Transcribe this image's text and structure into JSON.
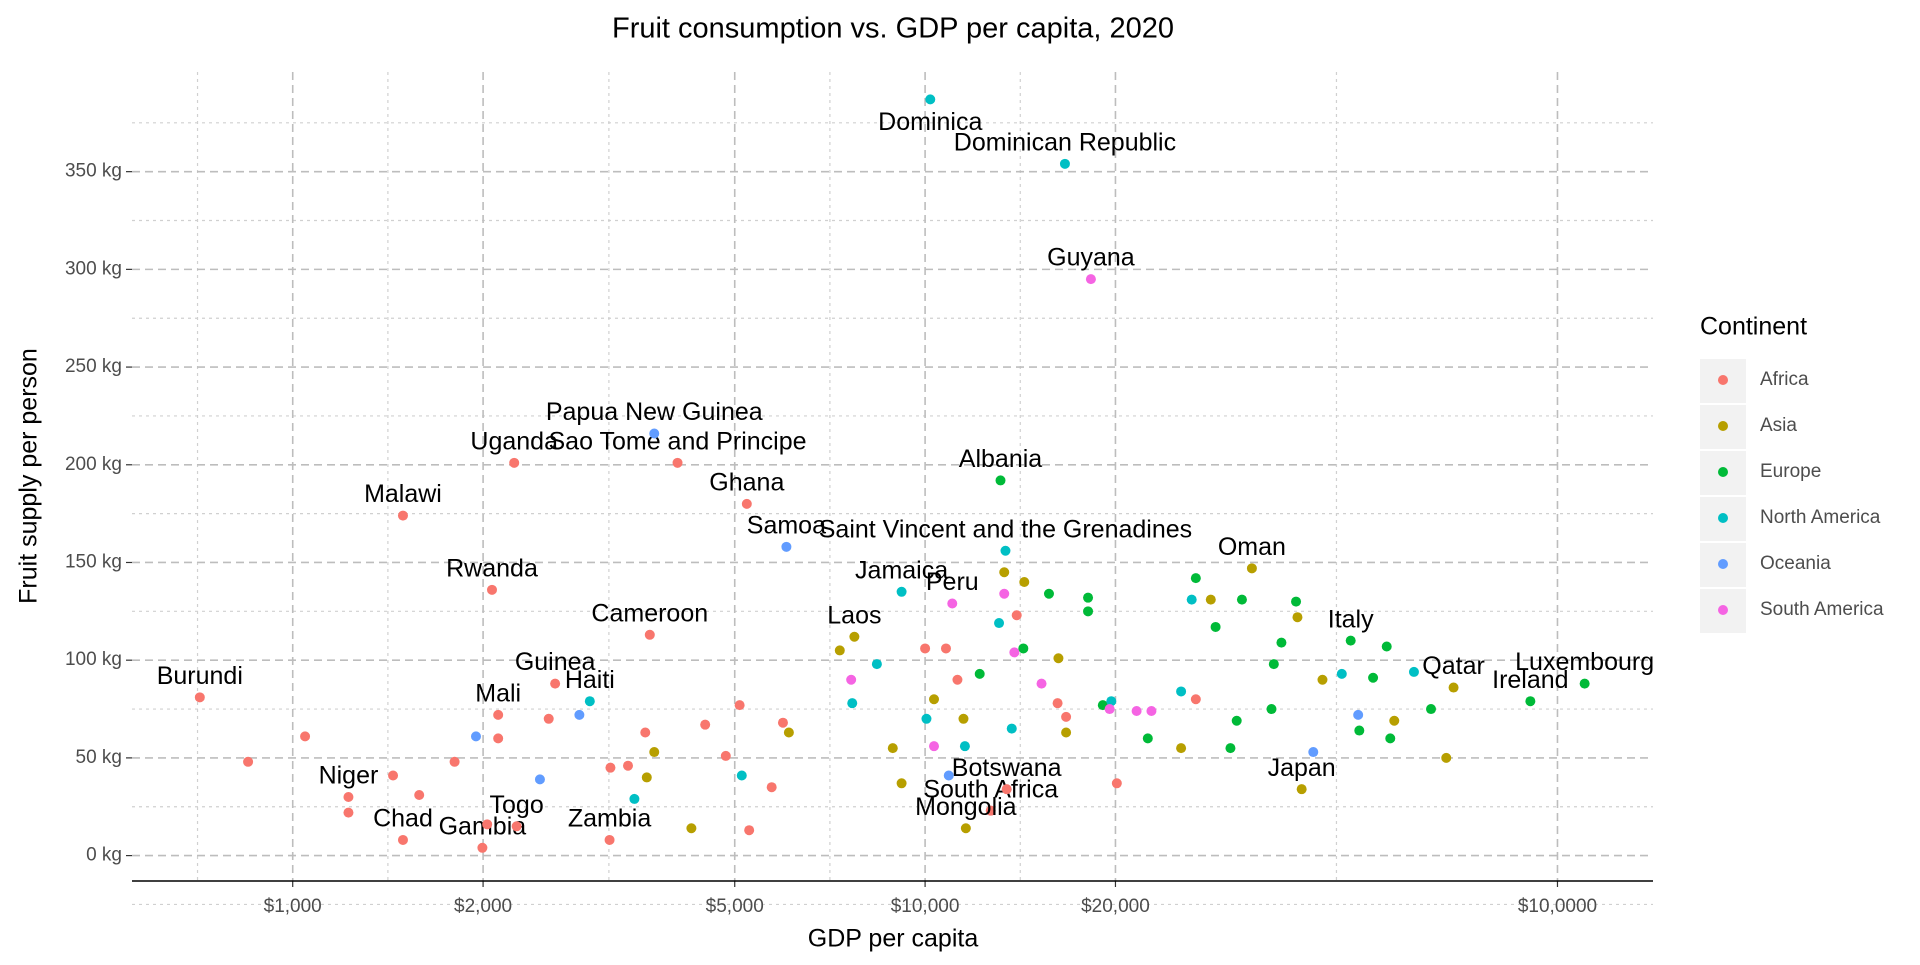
{
  "chart_data": {
    "type": "scatter",
    "title": "Fruit consumption vs. GDP per capita, 2020",
    "x_label": "GDP per capita",
    "y_label": "Fruit supply per person",
    "legend_title": "Continent",
    "xscale": "log",
    "grid": true,
    "legend_position": "right",
    "xlim": [
      557,
      141600
    ],
    "ylim": [
      -13,
      401
    ],
    "xticks": [
      {
        "value": 1000,
        "label": "$1,000"
      },
      {
        "value": 2000,
        "label": "$2,000"
      },
      {
        "value": 5000,
        "label": "$5,000"
      },
      {
        "value": 10000,
        "label": "$10,000"
      },
      {
        "value": 20000,
        "label": "$20,000"
      },
      {
        "value": 100000,
        "label": "$10,0000"
      }
    ],
    "yticks": [
      {
        "value": 0,
        "label": "0 kg"
      },
      {
        "value": 50,
        "label": "50 kg"
      },
      {
        "value": 100,
        "label": "100 kg"
      },
      {
        "value": 150,
        "label": "150 kg"
      },
      {
        "value": 200,
        "label": "200 kg"
      },
      {
        "value": 250,
        "label": "250 kg"
      },
      {
        "value": 300,
        "label": "300 kg"
      },
      {
        "value": 350,
        "label": "350 kg"
      }
    ],
    "series": [
      {
        "name": "Africa",
        "color": "#F8766D",
        "labels": [
          "Uganda",
          "Sao Tome and Principe",
          "Malawi",
          "Ghana",
          "Rwanda",
          "Cameroon",
          "Guinea",
          "Mali",
          "Burundi",
          "Niger",
          "Chad",
          "Gambia",
          "Togo",
          "Zambia",
          "South Africa",
          "Botswana",
          null,
          null,
          null,
          null,
          null,
          null,
          null,
          null,
          null,
          null,
          null,
          null,
          null,
          null,
          null,
          null,
          null,
          null,
          null,
          null,
          null,
          null,
          null,
          null,
          null,
          null
        ],
        "x": [
          2240,
          4060,
          1494,
          5225,
          2066,
          3670,
          2600,
          2113,
          713,
          1225,
          1494,
          1995,
          2260,
          3170,
          12700,
          13460,
          850,
          1046,
          1225,
          1441,
          1585,
          1803,
          2113,
          2540,
          3610,
          4490,
          5090,
          5960,
          3180,
          4840,
          5270,
          5720,
          10000,
          10790,
          11250,
          16710,
          16200,
          20100,
          26800,
          13960,
          2030,
          3390
        ],
        "values": [
          201,
          201,
          174,
          180,
          136,
          113,
          88,
          72,
          81,
          30,
          8,
          4,
          15,
          8,
          23,
          34,
          48,
          61,
          22,
          41,
          31,
          48,
          60,
          70,
          63,
          67,
          77,
          68,
          45,
          51,
          13,
          35,
          106,
          106,
          90,
          71,
          78,
          37,
          80,
          123,
          16,
          46
        ]
      },
      {
        "name": "Asia",
        "color": "#B79F00",
        "labels": [
          "Laos",
          "Mongolia",
          "Oman",
          "Qatar",
          "Japan",
          null,
          null,
          null,
          null,
          null,
          null,
          null,
          null,
          null,
          null,
          null,
          null,
          null,
          null,
          null,
          null,
          null,
          null,
          null
        ],
        "x": [
          7730,
          11600,
          32870,
          68500,
          39400,
          7330,
          8890,
          9180,
          10330,
          11500,
          13340,
          14350,
          16250,
          16710,
          25400,
          28300,
          38800,
          42500,
          55200,
          66700,
          6090,
          3730,
          3630,
          4270
        ],
        "values": [
          112,
          14,
          147,
          86,
          34,
          105,
          55,
          37,
          80,
          70,
          145,
          140,
          101,
          63,
          55,
          131,
          122,
          90,
          69,
          50,
          63,
          53,
          40,
          14
        ]
      },
      {
        "name": "Europe",
        "color": "#00BA38",
        "labels": [
          "Albania",
          "Italy",
          "Luxembourg",
          "Ireland",
          null,
          null,
          null,
          null,
          null,
          null,
          null,
          null,
          null,
          null,
          null,
          null,
          null,
          null,
          null,
          null,
          null,
          null,
          null,
          null,
          null
        ],
        "x": [
          13160,
          47100,
          110400,
          90600,
          26800,
          28800,
          31700,
          38600,
          35600,
          36600,
          53700,
          51100,
          48600,
          54400,
          63100,
          35300,
          31100,
          30400,
          22500,
          19100,
          18100,
          18100,
          15700,
          14300,
          12200
        ],
        "values": [
          192,
          110,
          88,
          79,
          142,
          117,
          131,
          130,
          98,
          109,
          107,
          91,
          64,
          60,
          75,
          75,
          69,
          55,
          60,
          77,
          132,
          125,
          134,
          106,
          93
        ]
      },
      {
        "name": "North America",
        "color": "#00BFC4",
        "labels": [
          "Dominica",
          "Dominican Republic",
          "Saint Vincent and the Grenadines",
          "Jamaica",
          "Haiti",
          null,
          null,
          null,
          null,
          null,
          null,
          null,
          null,
          null,
          null,
          null,
          null,
          null
        ],
        "x": [
          10190,
          16640,
          13400,
          9180,
          2950,
          8390,
          7670,
          10050,
          11560,
          13710,
          13090,
          19700,
          26400,
          25400,
          45600,
          59300,
          3470,
          5130
        ],
        "values": [
          387,
          354,
          156,
          135,
          79,
          98,
          78,
          70,
          56,
          65,
          119,
          79,
          131,
          84,
          93,
          94,
          29,
          41
        ]
      },
      {
        "name": "Oceania",
        "color": "#619CFF",
        "labels": [
          "Papua New Guinea",
          "Samoa",
          null,
          null,
          null,
          null,
          null,
          null
        ],
        "x": [
          3730,
          6035,
          1949,
          2460,
          2840,
          10900,
          41100,
          48400
        ],
        "values": [
          216,
          158,
          61,
          39,
          72,
          41,
          53,
          72
        ]
      },
      {
        "name": "South America",
        "color": "#F564E3",
        "labels": [
          "Guyana",
          "Peru",
          null,
          null,
          null,
          null,
          null,
          null,
          null,
          null
        ],
        "x": [
          18290,
          11040,
          7640,
          10330,
          13840,
          15280,
          19580,
          21600,
          22800,
          13340
        ],
        "values": [
          295,
          129,
          90,
          56,
          104,
          88,
          75,
          74,
          74,
          134
        ]
      }
    ]
  }
}
